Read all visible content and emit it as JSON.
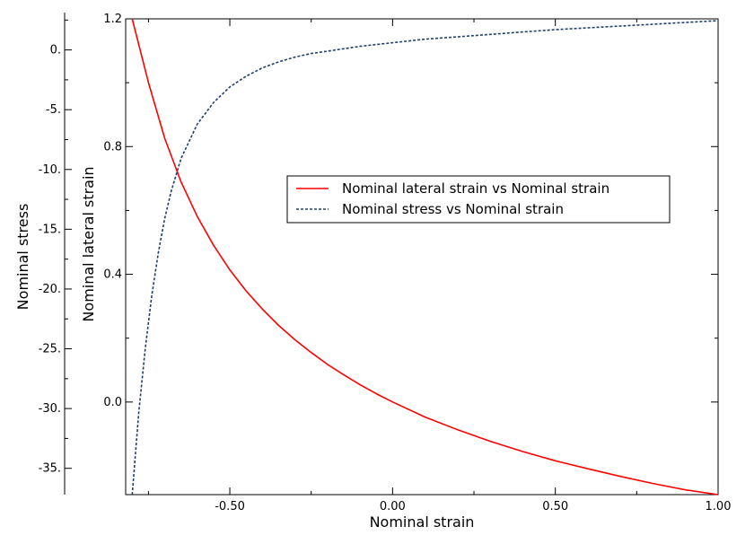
{
  "chart_data": {
    "type": "line",
    "xlabel": "Nominal strain",
    "ylabel_left": "Nominal stress",
    "ylabel_right": "Nominal lateral strain",
    "xlim": [
      -0.82,
      1.0
    ],
    "ylim_left": [
      -37.2,
      2.6
    ],
    "ylim_right": [
      -0.29,
      1.2
    ],
    "x_ticks": [
      {
        "value": -0.5,
        "label": "-0.50"
      },
      {
        "value": 0.0,
        "label": "0.00"
      },
      {
        "value": 0.5,
        "label": "0.50"
      },
      {
        "value": 1.0,
        "label": "1.00"
      }
    ],
    "y_left_ticks": [
      {
        "value": 0,
        "label": "0."
      },
      {
        "value": -5,
        "label": "-5."
      },
      {
        "value": -10,
        "label": "-10."
      },
      {
        "value": -15,
        "label": "-15."
      },
      {
        "value": -20,
        "label": "-20."
      },
      {
        "value": -25,
        "label": "-25."
      },
      {
        "value": -30,
        "label": "-30."
      },
      {
        "value": -35,
        "label": "-35."
      }
    ],
    "y_right_ticks": [
      {
        "value": 1.2,
        "label": "1.2"
      },
      {
        "value": 0.8,
        "label": "0.8"
      },
      {
        "value": 0.4,
        "label": "0.4"
      },
      {
        "value": 0.0,
        "label": "0.0"
      }
    ],
    "series": [
      {
        "name": "Nominal lateral strain vs Nominal strain",
        "axis": "right",
        "color": "#ff0000",
        "style": "solid",
        "x": [
          -0.8,
          -0.75,
          -0.7,
          -0.65,
          -0.6,
          -0.55,
          -0.5,
          -0.45,
          -0.4,
          -0.35,
          -0.3,
          -0.25,
          -0.2,
          -0.15,
          -0.1,
          -0.05,
          0.0,
          0.1,
          0.2,
          0.3,
          0.4,
          0.5,
          0.6,
          0.7,
          0.8,
          0.9,
          1.0
        ],
        "y": [
          1.236,
          1.0,
          0.826,
          0.69,
          0.581,
          0.491,
          0.414,
          0.348,
          0.291,
          0.24,
          0.195,
          0.155,
          0.118,
          0.085,
          0.054,
          0.026,
          0.0,
          -0.047,
          -0.087,
          -0.123,
          -0.155,
          -0.184,
          -0.209,
          -0.233,
          -0.255,
          -0.275,
          -0.293
        ]
      },
      {
        "name": "Nominal stress vs Nominal strain",
        "axis": "left",
        "color": "#1f3f6f",
        "style": "dashed",
        "x": [
          -0.8,
          -0.78,
          -0.76,
          -0.74,
          -0.72,
          -0.7,
          -0.68,
          -0.65,
          -0.6,
          -0.55,
          -0.5,
          -0.45,
          -0.4,
          -0.35,
          -0.3,
          -0.25,
          -0.2,
          -0.1,
          0.0,
          0.1,
          0.2,
          0.3,
          0.4,
          0.5,
          0.6,
          0.7,
          0.8,
          0.9,
          1.0
        ],
        "y": [
          -37.2,
          -30.4,
          -25.0,
          -20.6,
          -17.0,
          -14.1,
          -11.8,
          -9.1,
          -6.2,
          -4.4,
          -3.1,
          -2.2,
          -1.5,
          -1.0,
          -0.6,
          -0.3,
          -0.1,
          0.3,
          0.6,
          0.9,
          1.1,
          1.3,
          1.5,
          1.7,
          1.85,
          2.0,
          2.15,
          2.3,
          2.45
        ]
      }
    ],
    "legend": {
      "position": "center-right",
      "entries": [
        "Nominal lateral strain vs Nominal strain",
        "Nominal stress vs Nominal strain"
      ]
    },
    "grid": false
  }
}
